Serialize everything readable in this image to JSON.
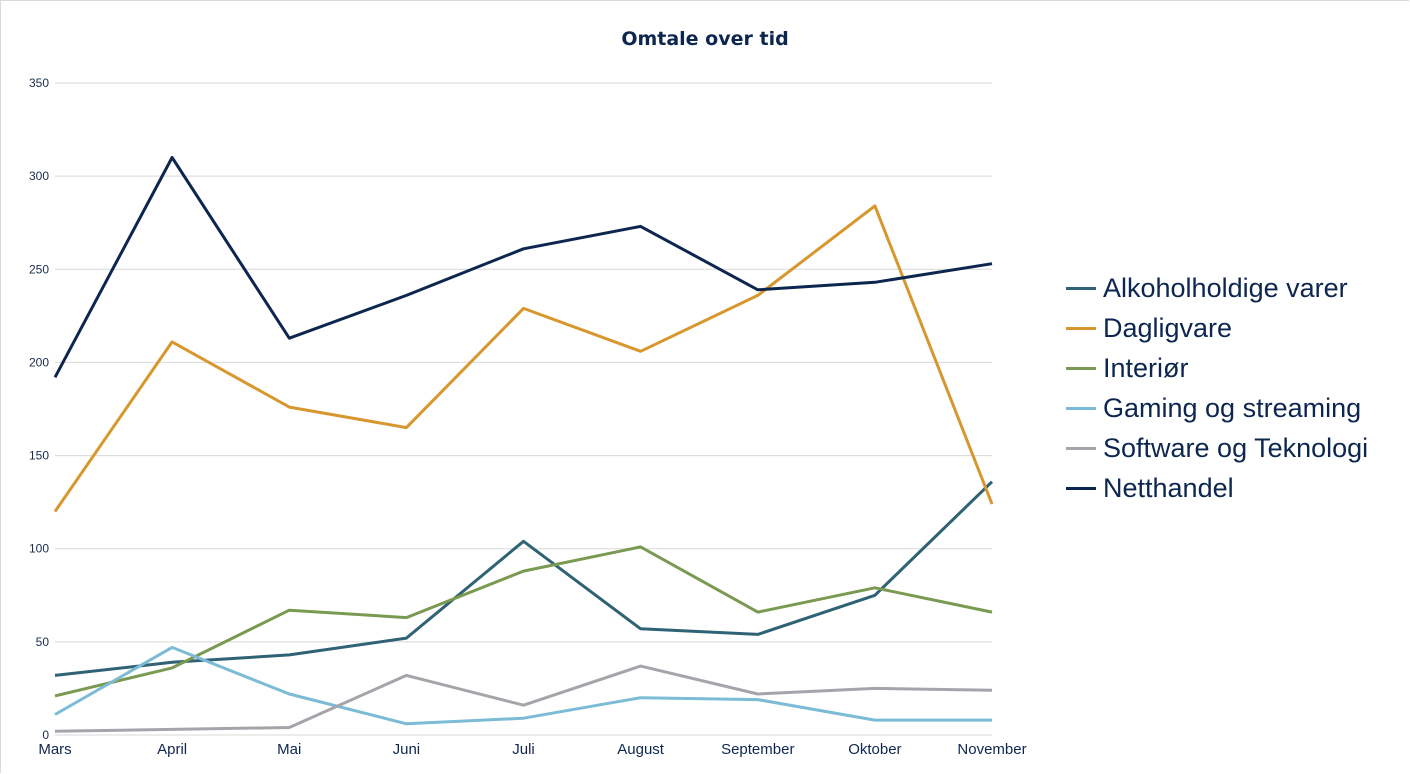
{
  "chart_data": {
    "type": "line",
    "title": "Omtale over tid",
    "xlabel": "",
    "ylabel": "",
    "ylim": [
      0,
      350
    ],
    "yticks": [
      0,
      50,
      100,
      150,
      200,
      250,
      300,
      350
    ],
    "grid": true,
    "legend_position": "right",
    "categories": [
      "Mars",
      "April",
      "Mai",
      "Juni",
      "Juli",
      "August",
      "September",
      "Oktober",
      "November"
    ],
    "series": [
      {
        "name": "Alkoholholdige varer",
        "color": "#2f6275",
        "values": [
          32,
          39,
          43,
          52,
          104,
          57,
          54,
          75,
          136
        ]
      },
      {
        "name": "Dagligvare",
        "color": "#d7972e",
        "values": [
          120,
          211,
          176,
          165,
          229,
          206,
          236,
          284,
          124
        ]
      },
      {
        "name": "Interiør",
        "color": "#7a9a52",
        "values": [
          21,
          36,
          67,
          63,
          88,
          101,
          66,
          79,
          66
        ]
      },
      {
        "name": "Gaming og streaming",
        "color": "#7bbbd6",
        "values": [
          11,
          47,
          22,
          6,
          9,
          20,
          19,
          8,
          8
        ]
      },
      {
        "name": "Software og Teknologi",
        "color": "#a7a3ab",
        "values": [
          2,
          3,
          4,
          32,
          16,
          37,
          22,
          25,
          24
        ]
      },
      {
        "name": "Netthandel",
        "color": "#0d2650",
        "values": [
          192,
          310,
          213,
          236,
          261,
          273,
          239,
          243,
          253
        ]
      }
    ]
  }
}
